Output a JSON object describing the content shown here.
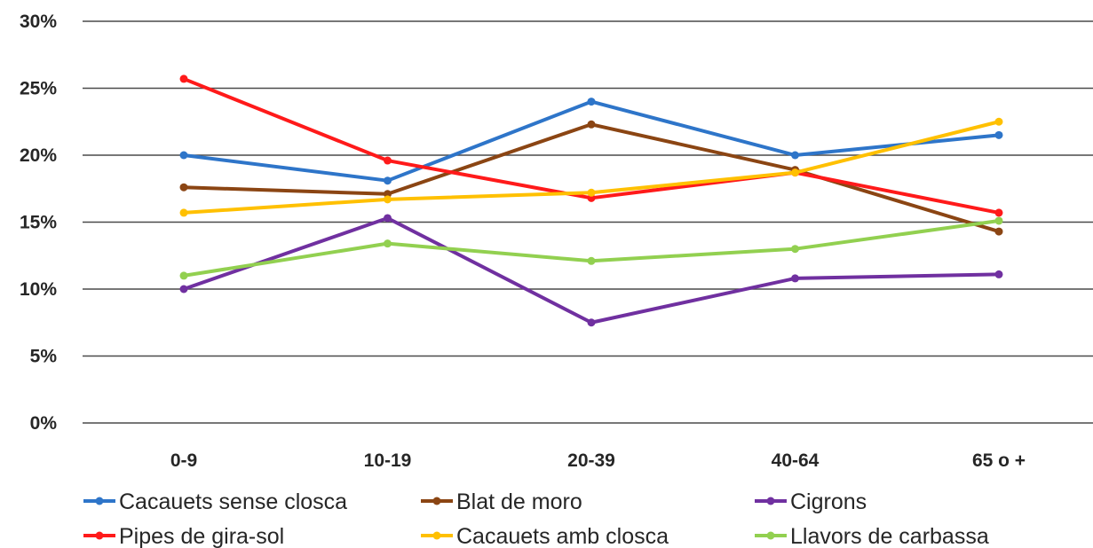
{
  "chart_data": {
    "type": "line",
    "title": "",
    "xlabel": "",
    "ylabel": "",
    "categories": [
      "0-9",
      "10-19",
      "20-39",
      "40-64",
      "65 o +"
    ],
    "ylim": [
      0,
      30
    ],
    "y_ticks": [
      "0%",
      "5%",
      "10%",
      "15%",
      "20%",
      "25%",
      "30%"
    ],
    "grid": true,
    "legend_position": "bottom",
    "series": [
      {
        "name": "Cacauets sense closca",
        "color": "#2E75C9",
        "values": [
          20.0,
          18.1,
          24.0,
          20.0,
          21.5
        ]
      },
      {
        "name": "Blat de moro",
        "color": "#8B4513",
        "values": [
          17.6,
          17.1,
          22.3,
          18.9,
          14.3
        ]
      },
      {
        "name": "Cigrons",
        "color": "#7030A0",
        "values": [
          10.0,
          15.3,
          7.5,
          10.8,
          11.1
        ]
      },
      {
        "name": "Pipes de gira-sol",
        "color": "#FF1A1A",
        "values": [
          25.7,
          19.6,
          16.8,
          18.7,
          15.7
        ]
      },
      {
        "name": "Cacauets amb closca",
        "color": "#FFC000",
        "values": [
          15.7,
          16.7,
          17.2,
          18.7,
          22.5
        ]
      },
      {
        "name": "Llavors de carbassa",
        "color": "#92D050",
        "values": [
          11.0,
          13.4,
          12.1,
          13.0,
          15.1
        ]
      }
    ]
  }
}
